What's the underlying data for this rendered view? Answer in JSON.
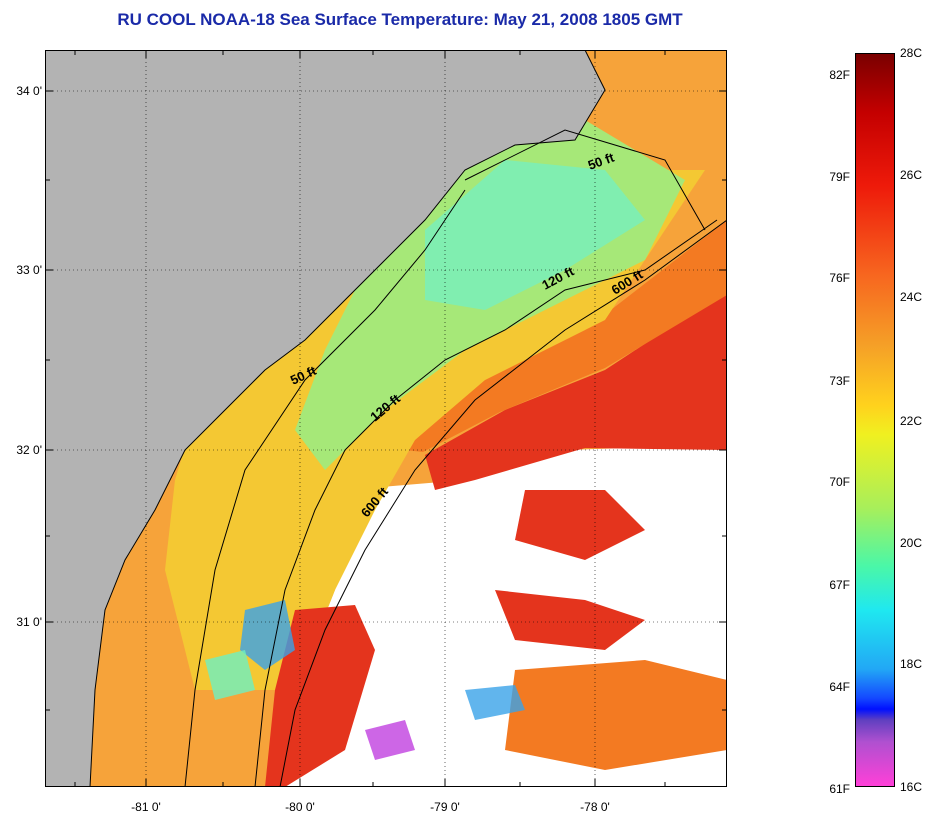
{
  "title": "RU COOL  NOAA-18  Sea Surface Temperature:  May 21, 2008 1805 GMT",
  "colors": {
    "land": "#b3b3b3",
    "cloud": "#ffffff",
    "title": "#1a2aa8",
    "warm": "#e8321a",
    "orange": "#f7901f",
    "yellow": "#f2d12a",
    "green": "#9fe870",
    "cyan": "#6ef0c0"
  },
  "latitude_labels": [
    "34 0'",
    "33 0'",
    "32 0'",
    "31 0'"
  ],
  "longitude_labels": [
    "-81 0'",
    "-80 0'",
    "-79 0'",
    "-78 0'"
  ],
  "contour_labels": {
    "c50_north": "50 ft",
    "c50_south": "50 ft",
    "c120_north": "120 ft",
    "c120_south": "120 ft",
    "c600_north": "600 ft",
    "c600_south": "600 ft"
  },
  "colorbar": {
    "fahrenheit_labels": [
      "82F",
      "79F",
      "76F",
      "73F",
      "70F",
      "67F",
      "64F",
      "61F"
    ],
    "celsius_labels": [
      "28C",
      "26C",
      "24C",
      "22C",
      "20C",
      "18C",
      "16C"
    ]
  }
}
